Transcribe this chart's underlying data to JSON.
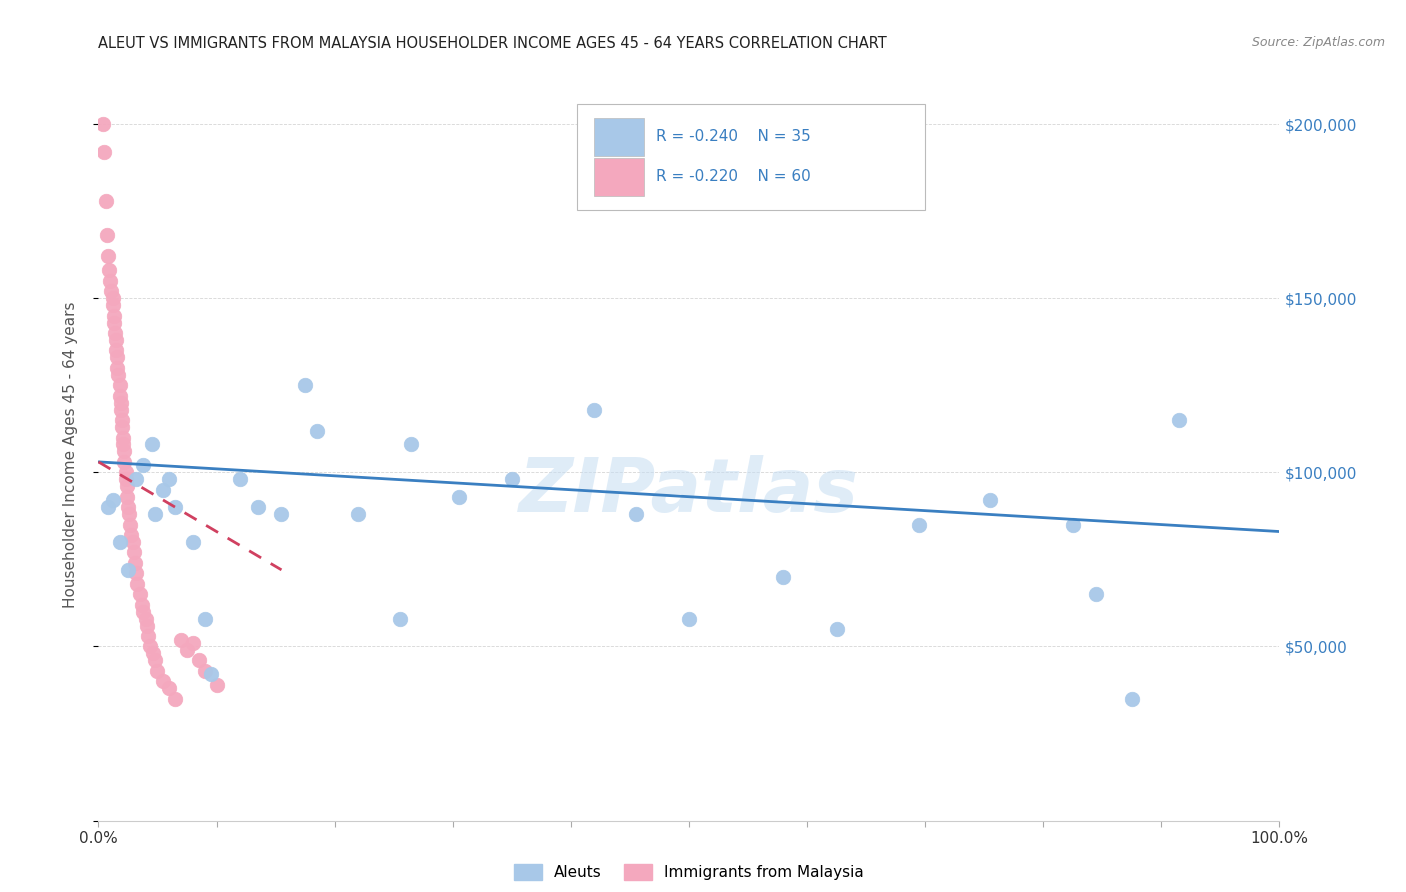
{
  "title": "ALEUT VS IMMIGRANTS FROM MALAYSIA HOUSEHOLDER INCOME AGES 45 - 64 YEARS CORRELATION CHART",
  "source": "Source: ZipAtlas.com",
  "ylabel": "Householder Income Ages 45 - 64 years",
  "xlim": [
    0,
    1.0
  ],
  "ylim": [
    0,
    210000
  ],
  "xticks": [
    0.0,
    0.1,
    0.2,
    0.3,
    0.4,
    0.5,
    0.6,
    0.7,
    0.8,
    0.9,
    1.0
  ],
  "xticklabels": [
    "0.0%",
    "",
    "",
    "",
    "",
    "",
    "",
    "",
    "",
    "",
    "100.0%"
  ],
  "yticks": [
    0,
    50000,
    100000,
    150000,
    200000
  ],
  "yticklabels_right": [
    "",
    "$50,000",
    "$100,000",
    "$150,000",
    "$200,000"
  ],
  "legend_aleuts_R": "-0.240",
  "legend_aleuts_N": "35",
  "legend_malaysia_R": "-0.220",
  "legend_malaysia_N": "60",
  "aleuts_color": "#a8c8e8",
  "malaysia_color": "#f4a8be",
  "trendline_aleuts_color": "#3a7fc1",
  "trendline_malaysia_color": "#d04060",
  "legend_text_color": "#3a7fc1",
  "yaxis_color": "#3a7fc1",
  "background_color": "#ffffff",
  "watermark": "ZIPatlas",
  "aleuts_x": [
    0.008,
    0.012,
    0.018,
    0.025,
    0.032,
    0.038,
    0.045,
    0.048,
    0.055,
    0.06,
    0.065,
    0.08,
    0.09,
    0.095,
    0.12,
    0.135,
    0.155,
    0.175,
    0.185,
    0.22,
    0.255,
    0.265,
    0.305,
    0.35,
    0.42,
    0.455,
    0.5,
    0.58,
    0.625,
    0.695,
    0.755,
    0.825,
    0.845,
    0.875,
    0.915
  ],
  "aleuts_y": [
    90000,
    92000,
    80000,
    72000,
    98000,
    102000,
    108000,
    88000,
    95000,
    98000,
    90000,
    80000,
    58000,
    42000,
    98000,
    90000,
    88000,
    125000,
    112000,
    88000,
    58000,
    108000,
    93000,
    98000,
    118000,
    88000,
    58000,
    70000,
    55000,
    85000,
    92000,
    85000,
    65000,
    35000,
    115000
  ],
  "malaysia_x": [
    0.004,
    0.005,
    0.006,
    0.007,
    0.008,
    0.009,
    0.01,
    0.011,
    0.012,
    0.012,
    0.013,
    0.013,
    0.014,
    0.015,
    0.015,
    0.016,
    0.016,
    0.017,
    0.018,
    0.018,
    0.019,
    0.019,
    0.02,
    0.02,
    0.021,
    0.021,
    0.022,
    0.022,
    0.023,
    0.023,
    0.024,
    0.024,
    0.025,
    0.026,
    0.027,
    0.028,
    0.029,
    0.03,
    0.031,
    0.032,
    0.033,
    0.035,
    0.037,
    0.038,
    0.04,
    0.041,
    0.042,
    0.044,
    0.046,
    0.048,
    0.05,
    0.055,
    0.06,
    0.065,
    0.07,
    0.075,
    0.08,
    0.085,
    0.09,
    0.1
  ],
  "malaysia_y": [
    200000,
    192000,
    178000,
    168000,
    162000,
    158000,
    155000,
    152000,
    150000,
    148000,
    145000,
    143000,
    140000,
    138000,
    135000,
    133000,
    130000,
    128000,
    125000,
    122000,
    120000,
    118000,
    115000,
    113000,
    110000,
    108000,
    106000,
    103000,
    100000,
    98000,
    96000,
    93000,
    90000,
    88000,
    85000,
    82000,
    80000,
    77000,
    74000,
    71000,
    68000,
    65000,
    62000,
    60000,
    58000,
    56000,
    53000,
    50000,
    48000,
    46000,
    43000,
    40000,
    38000,
    35000,
    52000,
    49000,
    51000,
    46000,
    43000,
    39000
  ],
  "trendline_aleuts_x0": 0.0,
  "trendline_aleuts_x1": 1.0,
  "trendline_aleuts_y0": 103000,
  "trendline_aleuts_y1": 83000,
  "trendline_malaysia_x0": 0.0,
  "trendline_malaysia_x1": 0.155,
  "trendline_malaysia_y0": 103000,
  "trendline_malaysia_y1": 72000
}
